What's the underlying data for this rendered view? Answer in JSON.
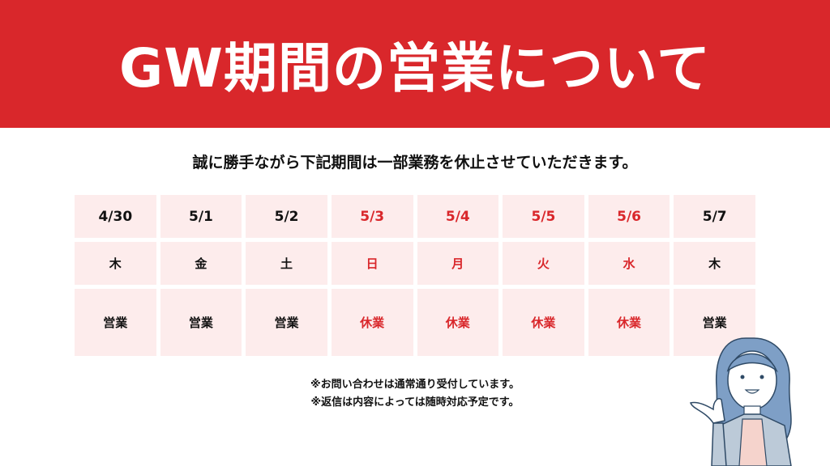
{
  "title": "GW期間の営業について",
  "subtitle": "誠に勝手ながら下記期間は一部業務を休止させていただきます。",
  "colors": {
    "accent": "#d9272b",
    "cell_bg": "#fdecec"
  },
  "schedule": [
    {
      "date": "4/30",
      "weekday": "木",
      "status": "営業",
      "holiday": false
    },
    {
      "date": "5/1",
      "weekday": "金",
      "status": "営業",
      "holiday": false
    },
    {
      "date": "5/2",
      "weekday": "土",
      "status": "営業",
      "holiday": false
    },
    {
      "date": "5/3",
      "weekday": "日",
      "status": "休業",
      "holiday": true
    },
    {
      "date": "5/4",
      "weekday": "月",
      "status": "休業",
      "holiday": true
    },
    {
      "date": "5/5",
      "weekday": "火",
      "status": "休業",
      "holiday": true
    },
    {
      "date": "5/6",
      "weekday": "水",
      "status": "休業",
      "holiday": true
    },
    {
      "date": "5/7",
      "weekday": "木",
      "status": "営業",
      "holiday": false
    }
  ],
  "notes": [
    "※お問い合わせは通常通り受付しています。",
    "※返信は内容によっては随時対応予定です。"
  ],
  "illustration": "woman-presenting-icon"
}
